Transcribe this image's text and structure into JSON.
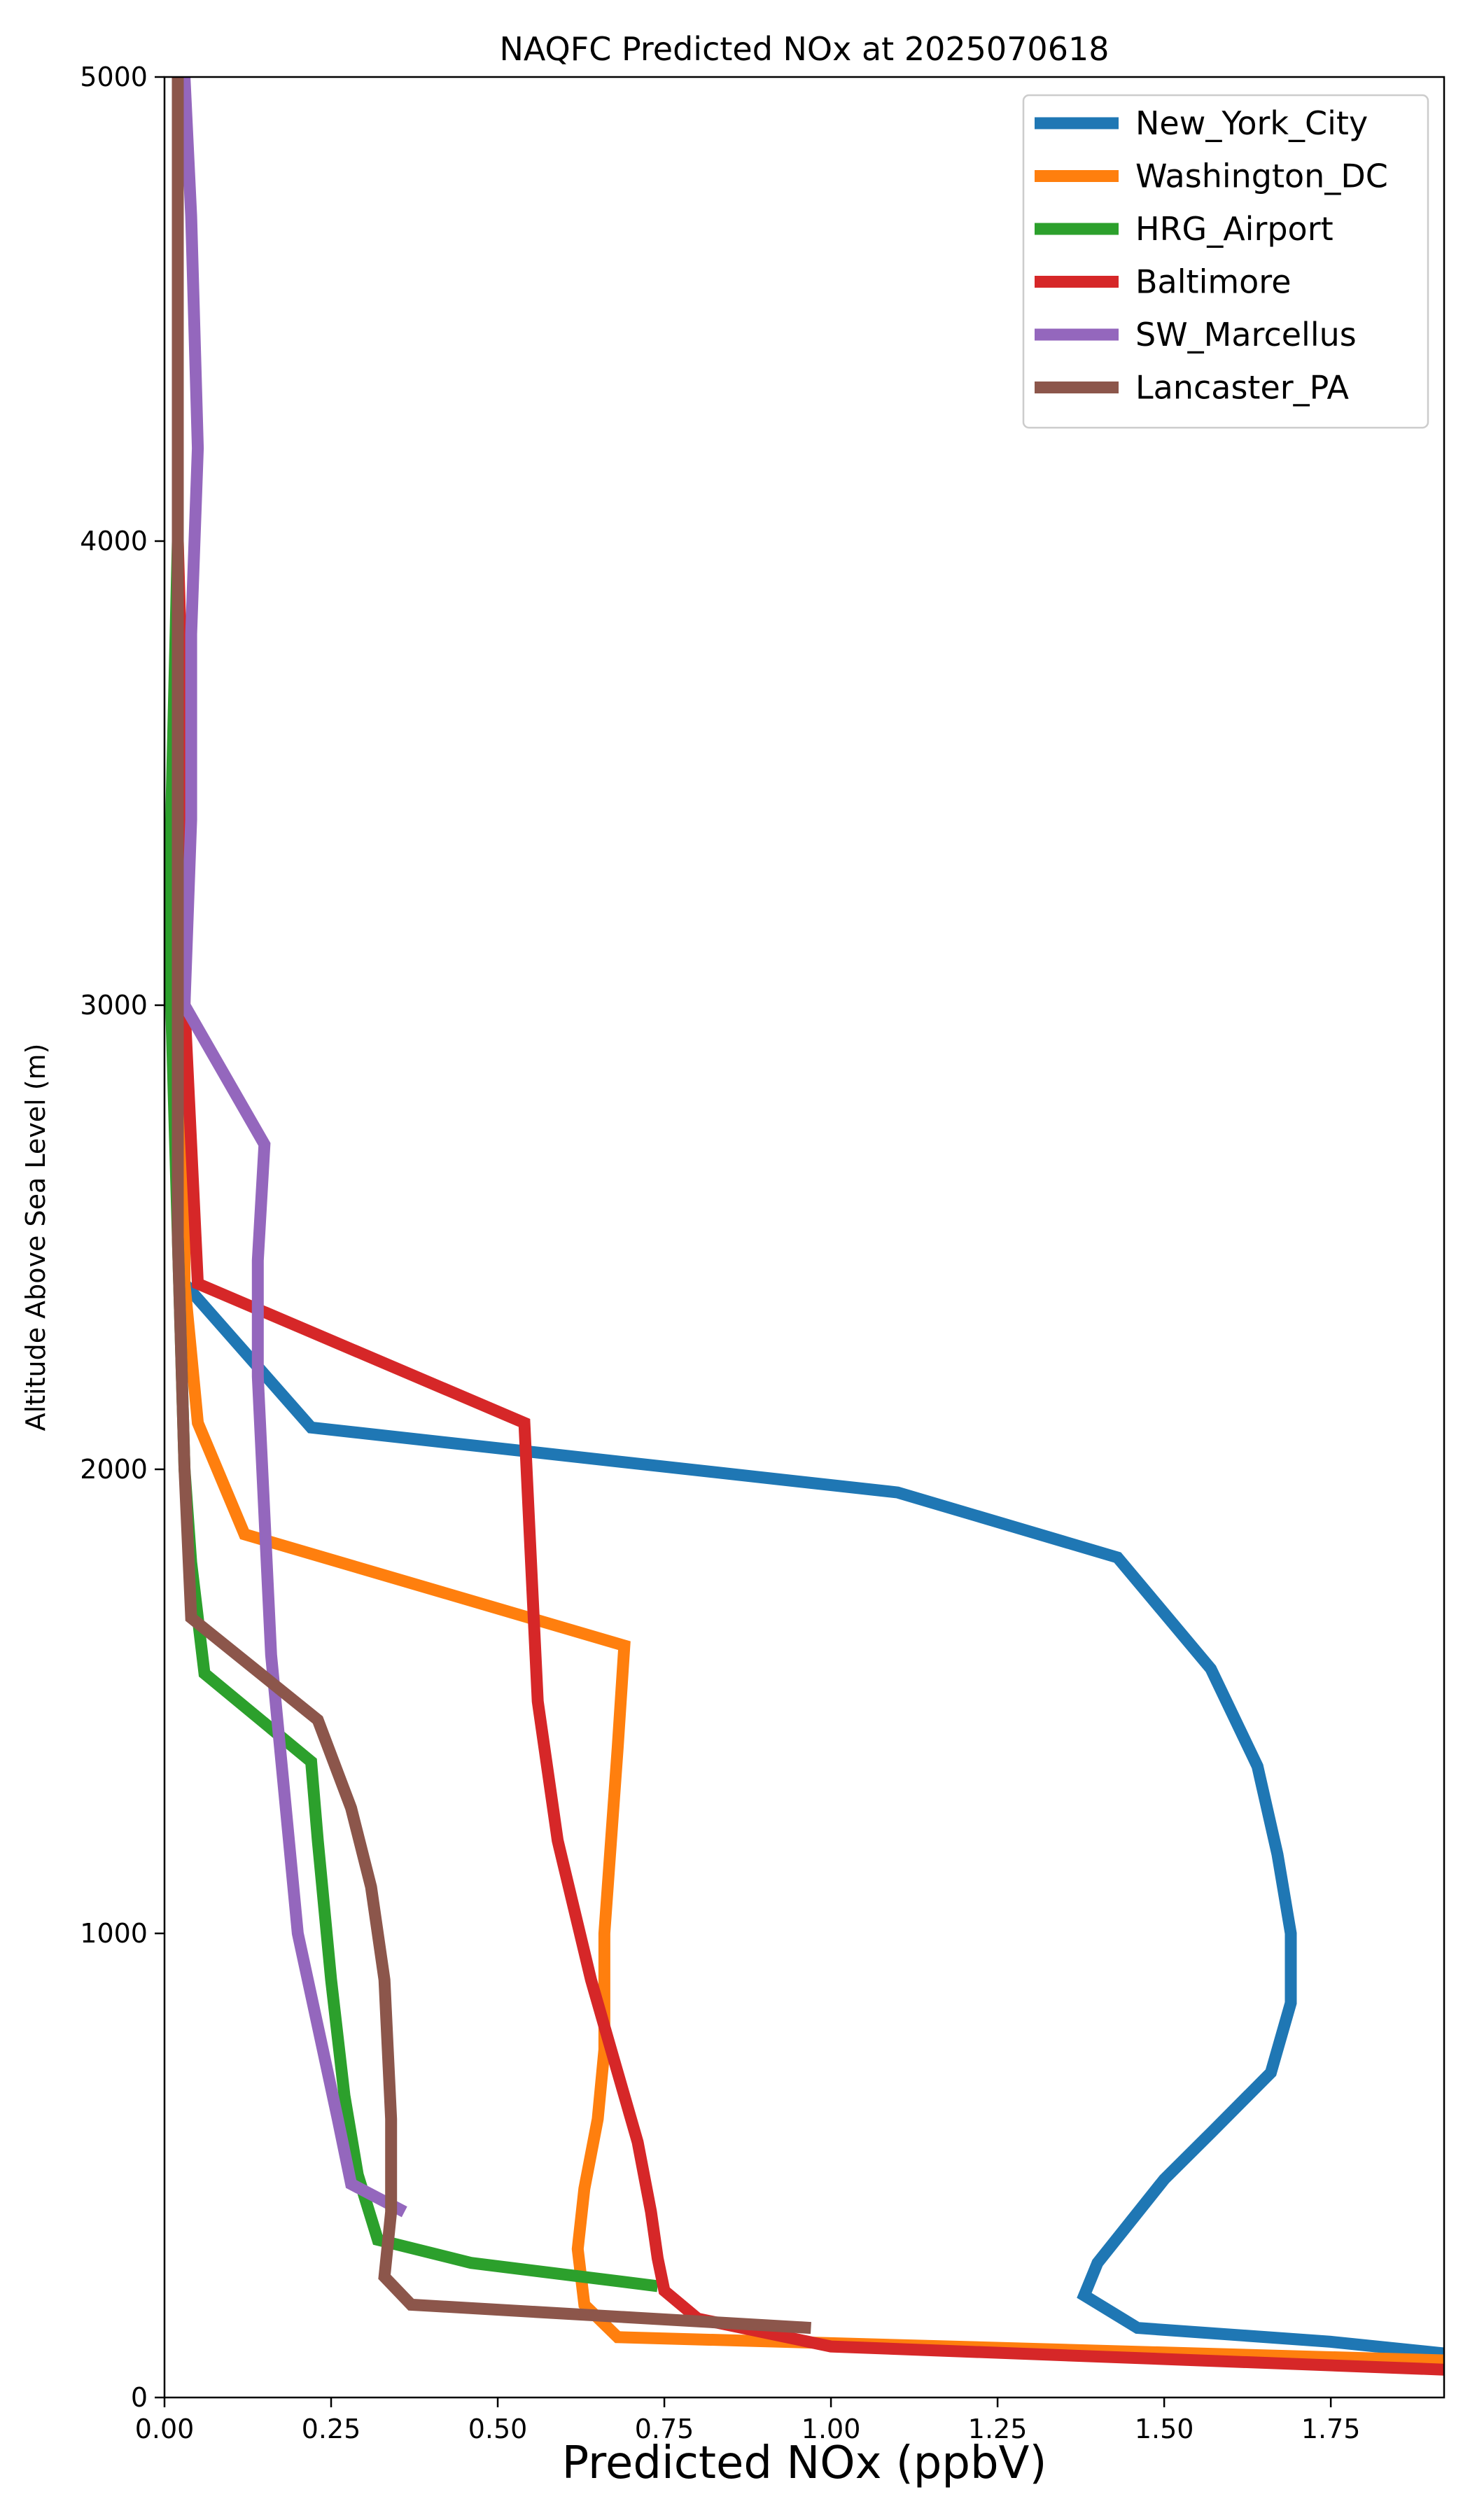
{
  "chart_data": {
    "type": "line",
    "title": "NAQFC Predicted NOx at 2025070618",
    "xlabel": "Predicted NOx (ppbV)",
    "ylabel": "Altitude Above Sea Level (m)",
    "xlim": [
      0,
      1.92
    ],
    "ylim": [
      0,
      5000
    ],
    "xticks": [
      0,
      0.25,
      0.5,
      0.75,
      1.0,
      1.25,
      1.5,
      1.75
    ],
    "xtick_labels": [
      "0.00",
      "0.25",
      "0.50",
      "0.75",
      "1.00",
      "1.25",
      "1.50",
      "1.75"
    ],
    "yticks": [
      0,
      1000,
      2000,
      3000,
      4000,
      5000
    ],
    "ytick_labels": [
      "0",
      "1000",
      "2000",
      "3000",
      "4000",
      "5000"
    ],
    "grid": false,
    "legend_position": "top-right",
    "series": [
      {
        "name": "New_York_City",
        "color": "#1f77b4",
        "x": [
          1.92,
          1.75,
          1.46,
          1.38,
          1.4,
          1.45,
          1.5,
          1.57,
          1.66,
          1.69,
          1.69,
          1.67,
          1.64,
          1.57,
          1.43,
          1.1,
          0.22,
          0.03,
          0.02,
          0.02,
          0.02
        ],
        "y": [
          95,
          120,
          150,
          220,
          290,
          380,
          470,
          570,
          700,
          850,
          1000,
          1170,
          1360,
          1570,
          1810,
          1950,
          2090,
          2400,
          3000,
          4000,
          5000
        ]
      },
      {
        "name": "Washington_DC",
        "color": "#ff7f0e",
        "x": [
          1.92,
          0.68,
          0.63,
          0.62,
          0.63,
          0.65,
          0.66,
          0.66,
          0.67,
          0.68,
          0.69,
          0.12,
          0.05,
          0.03,
          0.03,
          0.02,
          0.02
        ],
        "y": [
          80,
          130,
          200,
          320,
          450,
          600,
          750,
          1000,
          1200,
          1400,
          1620,
          1860,
          2100,
          2400,
          3000,
          4000,
          5000
        ]
      },
      {
        "name": "HRG_Airport",
        "color": "#2ca02c",
        "x": [
          0.74,
          0.46,
          0.32,
          0.29,
          0.27,
          0.25,
          0.23,
          0.22,
          0.06,
          0.04,
          0.03,
          0.02,
          0.01,
          0.01,
          0.02,
          0.02
        ],
        "y": [
          240,
          290,
          340,
          480,
          650,
          900,
          1200,
          1370,
          1560,
          1800,
          2000,
          2500,
          3000,
          3400,
          4000,
          5000
        ]
      },
      {
        "name": "Baltimore",
        "color": "#d62728",
        "x": [
          1.92,
          1.0,
          0.8,
          0.75,
          0.74,
          0.73,
          0.71,
          0.68,
          0.64,
          0.59,
          0.56,
          0.55,
          0.54,
          0.05,
          0.04,
          0.03,
          0.03,
          0.02,
          0.02
        ],
        "y": [
          60,
          110,
          170,
          230,
          300,
          400,
          550,
          700,
          900,
          1200,
          1500,
          1800,
          2100,
          2400,
          2700,
          3000,
          3500,
          4000,
          5000
        ]
      },
      {
        "name": "SW_Marcellus",
        "color": "#9467bd",
        "x": [
          0.36,
          0.28,
          0.26,
          0.23,
          0.2,
          0.18,
          0.16,
          0.15,
          0.14,
          0.14,
          0.15,
          0.03,
          0.04,
          0.04,
          0.05,
          0.04,
          0.03
        ],
        "y": [
          400,
          460,
          600,
          800,
          1000,
          1300,
          1600,
          1900,
          2200,
          2450,
          2700,
          3000,
          3400,
          3800,
          4200,
          4700,
          5000
        ]
      },
      {
        "name": "Lancaster_PA",
        "color": "#8c564b",
        "x": [
          0.97,
          0.37,
          0.33,
          0.34,
          0.34,
          0.33,
          0.31,
          0.28,
          0.23,
          0.04,
          0.03,
          0.02,
          0.02,
          0.02,
          0.02
        ],
        "y": [
          150,
          200,
          260,
          400,
          600,
          900,
          1100,
          1270,
          1460,
          1680,
          2000,
          2500,
          3000,
          4000,
          5000
        ]
      }
    ]
  }
}
